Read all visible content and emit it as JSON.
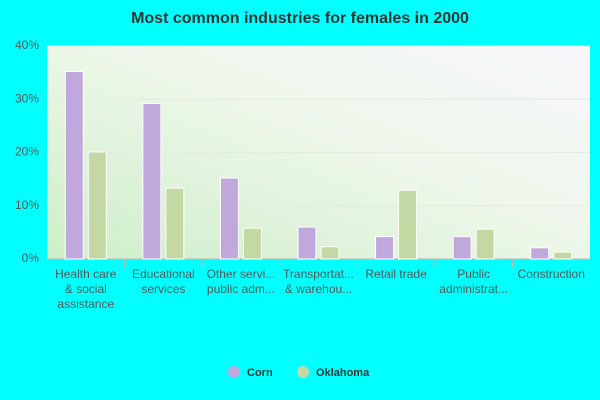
{
  "chart_data": {
    "type": "bar",
    "title": "Most common industries for females in 2000",
    "categories": [
      [
        "Health care",
        "& social",
        "assistance"
      ],
      [
        "Educational",
        "services"
      ],
      [
        "Other servi...",
        "public adm..."
      ],
      [
        "Transportat...",
        "& warehou..."
      ],
      [
        "Retail trade"
      ],
      [
        "Public",
        "administrat..."
      ],
      [
        "Construction"
      ]
    ],
    "series": [
      {
        "name": "Corn",
        "color": "#c0a8dc",
        "values": [
          35.2,
          29.2,
          15.2,
          6.0,
          4.2,
          4.2,
          2.1
        ]
      },
      {
        "name": "Oklahoma",
        "color": "#c4d8a4",
        "values": [
          20.1,
          13.3,
          5.8,
          2.3,
          12.9,
          5.6,
          1.3
        ]
      }
    ],
    "ylim": [
      0,
      40
    ],
    "yticks": [
      {
        "value": 0,
        "label": "0%"
      },
      {
        "value": 10,
        "label": "10%"
      },
      {
        "value": 20,
        "label": "20%"
      },
      {
        "value": 30,
        "label": "30%"
      },
      {
        "value": 40,
        "label": "40%"
      }
    ],
    "grid": true
  }
}
